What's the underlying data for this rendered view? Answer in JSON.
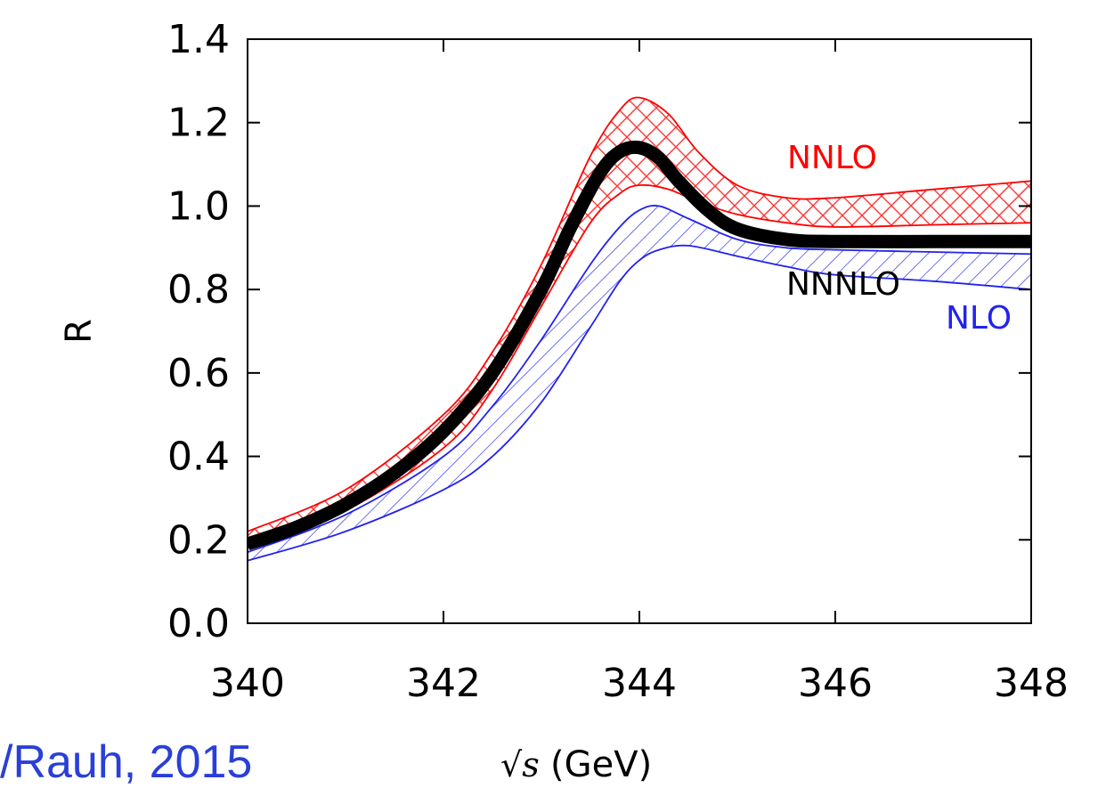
{
  "credit_text": "/Rauh, 2015",
  "chart_data": {
    "type": "line",
    "title": "",
    "xlabel_math": "√s",
    "xlabel_unit": "(GeV)",
    "ylabel": "R",
    "xlim": [
      340,
      348
    ],
    "ylim": [
      0.0,
      1.4
    ],
    "x_ticks": [
      "340",
      "342",
      "344",
      "346",
      "348"
    ],
    "y_ticks": [
      "0.0",
      "0.2",
      "0.4",
      "0.6",
      "0.8",
      "1.0",
      "1.2",
      "1.4"
    ],
    "grid": false,
    "colors": {
      "NNLO": "#ff0000",
      "NLO": "#2222ee",
      "NNNLO": "#000000"
    },
    "series": [
      {
        "name": "NNLO",
        "style": "band-crosshatch",
        "x": [
          340.0,
          341.0,
          342.0,
          342.5,
          343.0,
          343.5,
          343.8,
          344.0,
          344.3,
          344.6,
          345.0,
          345.5,
          346.0,
          347.0,
          348.0
        ],
        "upper": [
          0.22,
          0.32,
          0.5,
          0.65,
          0.86,
          1.12,
          1.23,
          1.26,
          1.22,
          1.13,
          1.05,
          1.02,
          1.02,
          1.04,
          1.06
        ],
        "lower": [
          0.18,
          0.27,
          0.42,
          0.56,
          0.76,
          0.96,
          1.03,
          1.05,
          1.04,
          1.01,
          0.98,
          0.96,
          0.95,
          0.955,
          0.96
        ]
      },
      {
        "name": "NLO",
        "style": "band-hatch",
        "x": [
          340.0,
          341.0,
          342.0,
          342.5,
          343.0,
          343.5,
          343.8,
          344.0,
          344.2,
          344.5,
          345.0,
          345.5,
          346.0,
          347.0,
          348.0
        ],
        "upper": [
          0.17,
          0.26,
          0.4,
          0.52,
          0.68,
          0.86,
          0.95,
          0.99,
          1.0,
          0.97,
          0.92,
          0.9,
          0.895,
          0.89,
          0.885
        ],
        "lower": [
          0.15,
          0.22,
          0.32,
          0.4,
          0.53,
          0.71,
          0.82,
          0.87,
          0.895,
          0.905,
          0.88,
          0.855,
          0.835,
          0.82,
          0.8
        ]
      },
      {
        "name": "NNNLO",
        "style": "thick-line",
        "x": [
          340.0,
          340.5,
          341.0,
          341.5,
          342.0,
          342.5,
          343.0,
          343.3,
          343.6,
          343.8,
          344.0,
          344.2,
          344.4,
          344.7,
          345.0,
          345.5,
          346.0,
          347.0,
          348.0
        ],
        "y": [
          0.19,
          0.23,
          0.285,
          0.36,
          0.46,
          0.6,
          0.8,
          0.95,
          1.08,
          1.13,
          1.14,
          1.115,
          1.06,
          0.99,
          0.945,
          0.92,
          0.915,
          0.915,
          0.915
        ]
      }
    ],
    "labels": [
      {
        "text": "NNLO",
        "series": "NNLO"
      },
      {
        "text": "NNNLO",
        "series": "NNNLO"
      },
      {
        "text": "NLO",
        "series": "NLO"
      }
    ]
  }
}
